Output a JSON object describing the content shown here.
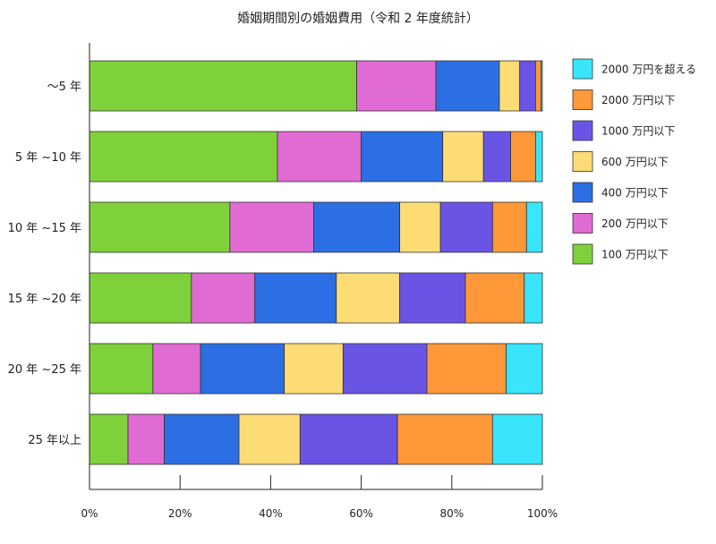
{
  "chart_data": {
    "type": "bar",
    "orientation": "horizontal",
    "stacked": true,
    "title": "婚姻期間別の婚姻費用（令和 2 年度統計）",
    "categories": [
      "～5 年",
      "5 年 ~10 年",
      "10 年 ~15 年",
      "15 年 ~20 年",
      "20 年 ~25 年",
      "25 年以上"
    ],
    "x_ticks": [
      "0%",
      "20%",
      "40%",
      "60%",
      "80%",
      "100%"
    ],
    "xlim": [
      0,
      100
    ],
    "grid": false,
    "legend_position": "right",
    "series": [
      {
        "name": "100 万円以下",
        "color": "#7fd13b",
        "values": [
          59.0,
          41.5,
          31.0,
          22.5,
          14.0,
          8.5
        ]
      },
      {
        "name": "200 万円以下",
        "color": "#e06bd2",
        "values": [
          17.5,
          18.5,
          18.5,
          14.0,
          10.5,
          8.0
        ]
      },
      {
        "name": "400 万円以下",
        "color": "#2c6fe4",
        "values": [
          14.0,
          18.0,
          19.0,
          18.0,
          18.5,
          16.5
        ]
      },
      {
        "name": "600 万円以下",
        "color": "#fedc75",
        "values": [
          4.5,
          9.0,
          9.0,
          14.0,
          13.0,
          13.5
        ]
      },
      {
        "name": "1000 万円以下",
        "color": "#6a54e6",
        "values": [
          3.5,
          6.0,
          11.5,
          14.5,
          18.5,
          21.5
        ]
      },
      {
        "name": "2000 万円以下",
        "color": "#ff9838",
        "values": [
          1.2,
          5.5,
          7.5,
          13.0,
          17.5,
          21.0
        ]
      },
      {
        "name": "2000 万円を超える",
        "color": "#38e5fb",
        "values": [
          0.3,
          1.5,
          3.5,
          4.0,
          8.0,
          11.0
        ]
      }
    ],
    "legend_order": [
      6,
      5,
      4,
      3,
      2,
      1,
      0
    ]
  }
}
